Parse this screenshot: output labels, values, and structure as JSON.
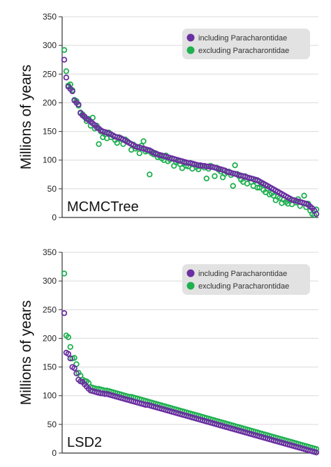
{
  "colors": {
    "including": "#6a2fa0",
    "excluding": "#1fb050",
    "legend_bg": "#e2e2e2",
    "grid": "#d9d9d9",
    "axis": "#333333"
  },
  "chart_data": [
    {
      "type": "scatter",
      "panel_label": "MCMCTree",
      "ylabel": "Millions of years",
      "xlabel": "",
      "ylim": [
        0,
        350
      ],
      "yticks": [
        0,
        50,
        100,
        150,
        200,
        250,
        300,
        350
      ],
      "grid": "horizontal",
      "legend_position": "top-right",
      "legend": [
        "including Paracharontidae",
        "excluding Paracharontidae"
      ],
      "marker": "open-circle",
      "series": [
        {
          "name": "including Paracharontidae",
          "values": [
            275,
            244,
            228,
            224,
            220,
            204,
            200,
            197,
            182,
            178,
            176,
            172,
            170,
            167,
            164,
            161,
            157,
            155,
            152,
            150,
            149,
            148,
            146,
            145,
            143,
            141,
            140,
            139,
            138,
            136,
            134,
            132,
            130,
            128,
            126,
            124,
            123,
            122,
            121,
            120,
            119,
            118,
            117,
            115,
            113,
            111,
            110,
            109,
            108,
            107,
            106,
            105,
            104,
            103,
            102,
            101,
            100,
            99,
            98,
            97,
            96,
            95,
            95,
            94,
            93,
            92,
            91,
            91,
            90,
            90,
            89,
            89,
            88,
            88,
            87,
            86,
            85,
            84,
            83,
            82,
            80,
            79,
            78,
            77,
            76,
            75,
            74,
            73,
            72,
            71,
            70,
            69,
            68,
            67,
            66,
            65,
            63,
            61,
            59,
            57,
            55,
            53,
            51,
            49,
            47,
            45,
            43,
            41,
            39,
            37,
            35,
            33,
            31,
            30,
            29,
            28,
            27,
            26,
            25,
            24,
            22,
            19,
            16,
            12,
            6
          ]
        },
        {
          "name": "excluding Paracharontidae",
          "values": [
            292,
            255,
            230,
            232,
            222,
            205,
            203,
            195,
            183,
            180,
            175,
            168,
            172,
            160,
            174,
            155,
            160,
            128,
            150,
            140,
            145,
            138,
            148,
            140,
            143,
            135,
            130,
            140,
            137,
            128,
            136,
            133,
            130,
            118,
            127,
            120,
            122,
            112,
            125,
            133,
            115,
            116,
            75,
            112,
            110,
            112,
            105,
            107,
            103,
            100,
            108,
            98,
            101,
            103,
            90,
            96,
            98,
            93,
            86,
            95,
            90,
            89,
            95,
            85,
            92,
            88,
            84,
            89,
            90,
            87,
            68,
            85,
            90,
            88,
            72,
            87,
            83,
            80,
            70,
            76,
            79,
            80,
            74,
            55,
            91,
            76,
            72,
            66,
            62,
            72,
            59,
            68,
            62,
            55,
            64,
            52,
            52,
            58,
            48,
            44,
            50,
            40,
            42,
            38,
            30,
            36,
            34,
            25,
            31,
            27,
            24,
            29,
            23,
            30,
            26,
            32,
            20,
            26,
            38,
            18,
            24,
            12,
            6,
            4,
            14
          ]
        }
      ]
    },
    {
      "type": "scatter",
      "panel_label": "LSD2",
      "ylabel": "Millions of years",
      "xlabel": "",
      "ylim": [
        0,
        350
      ],
      "yticks": [
        0,
        50,
        100,
        150,
        200,
        250,
        300,
        350
      ],
      "grid": "horizontal",
      "legend_position": "top-right",
      "legend": [
        "including Paracharontidae",
        "excluding Paracharontidae"
      ],
      "marker": "open-circle",
      "series": [
        {
          "name": "including Paracharontidae",
          "values": [
            244,
            175,
            173,
            165,
            150,
            148,
            139,
            128,
            125,
            124,
            120,
            116,
            112,
            109,
            108,
            107,
            106,
            105,
            104,
            104,
            103,
            103,
            102,
            101,
            100,
            99,
            98,
            97,
            96,
            95,
            94,
            93,
            92,
            91,
            90,
            89,
            88,
            87,
            86,
            85,
            84,
            84,
            83,
            82,
            81,
            80,
            79,
            78,
            77,
            76,
            75,
            74,
            73,
            72,
            71,
            70,
            69,
            68,
            67,
            66,
            65,
            64,
            63,
            62,
            61,
            60,
            59,
            58,
            57,
            56,
            55,
            54,
            53,
            52,
            51,
            50,
            49,
            48,
            47,
            46,
            45,
            44,
            43,
            42,
            41,
            40,
            39,
            38,
            37,
            36,
            35,
            34,
            33,
            32,
            31,
            30,
            29,
            28,
            27,
            26,
            25,
            24,
            23,
            22,
            21,
            20,
            19,
            18,
            17,
            16,
            15,
            14,
            13,
            12,
            11,
            10,
            9,
            8,
            7,
            6,
            5,
            4,
            3,
            2,
            1
          ]
        },
        {
          "name": "excluding Paracharontidae",
          "values": [
            313,
            205,
            202,
            185,
            165,
            166,
            155,
            140,
            135,
            128,
            126,
            125,
            122,
            115,
            114,
            113,
            112,
            112,
            111,
            110,
            109,
            109,
            108,
            107,
            106,
            105,
            104,
            103,
            102,
            101,
            100,
            99,
            98,
            98,
            97,
            96,
            95,
            94,
            93,
            92,
            91,
            90,
            89,
            88,
            87,
            86,
            85,
            84,
            83,
            82,
            81,
            80,
            79,
            78,
            77,
            76,
            75,
            74,
            73,
            72,
            71,
            70,
            69,
            68,
            67,
            66,
            65,
            64,
            63,
            62,
            61,
            60,
            59,
            58,
            57,
            56,
            55,
            54,
            53,
            52,
            51,
            50,
            49,
            48,
            47,
            46,
            45,
            44,
            43,
            42,
            41,
            40,
            39,
            38,
            37,
            36,
            35,
            34,
            33,
            32,
            31,
            30,
            29,
            28,
            27,
            26,
            25,
            24,
            23,
            22,
            21,
            20,
            19,
            18,
            17,
            16,
            15,
            14,
            13,
            12,
            11,
            10,
            9,
            8,
            7
          ]
        }
      ]
    }
  ]
}
